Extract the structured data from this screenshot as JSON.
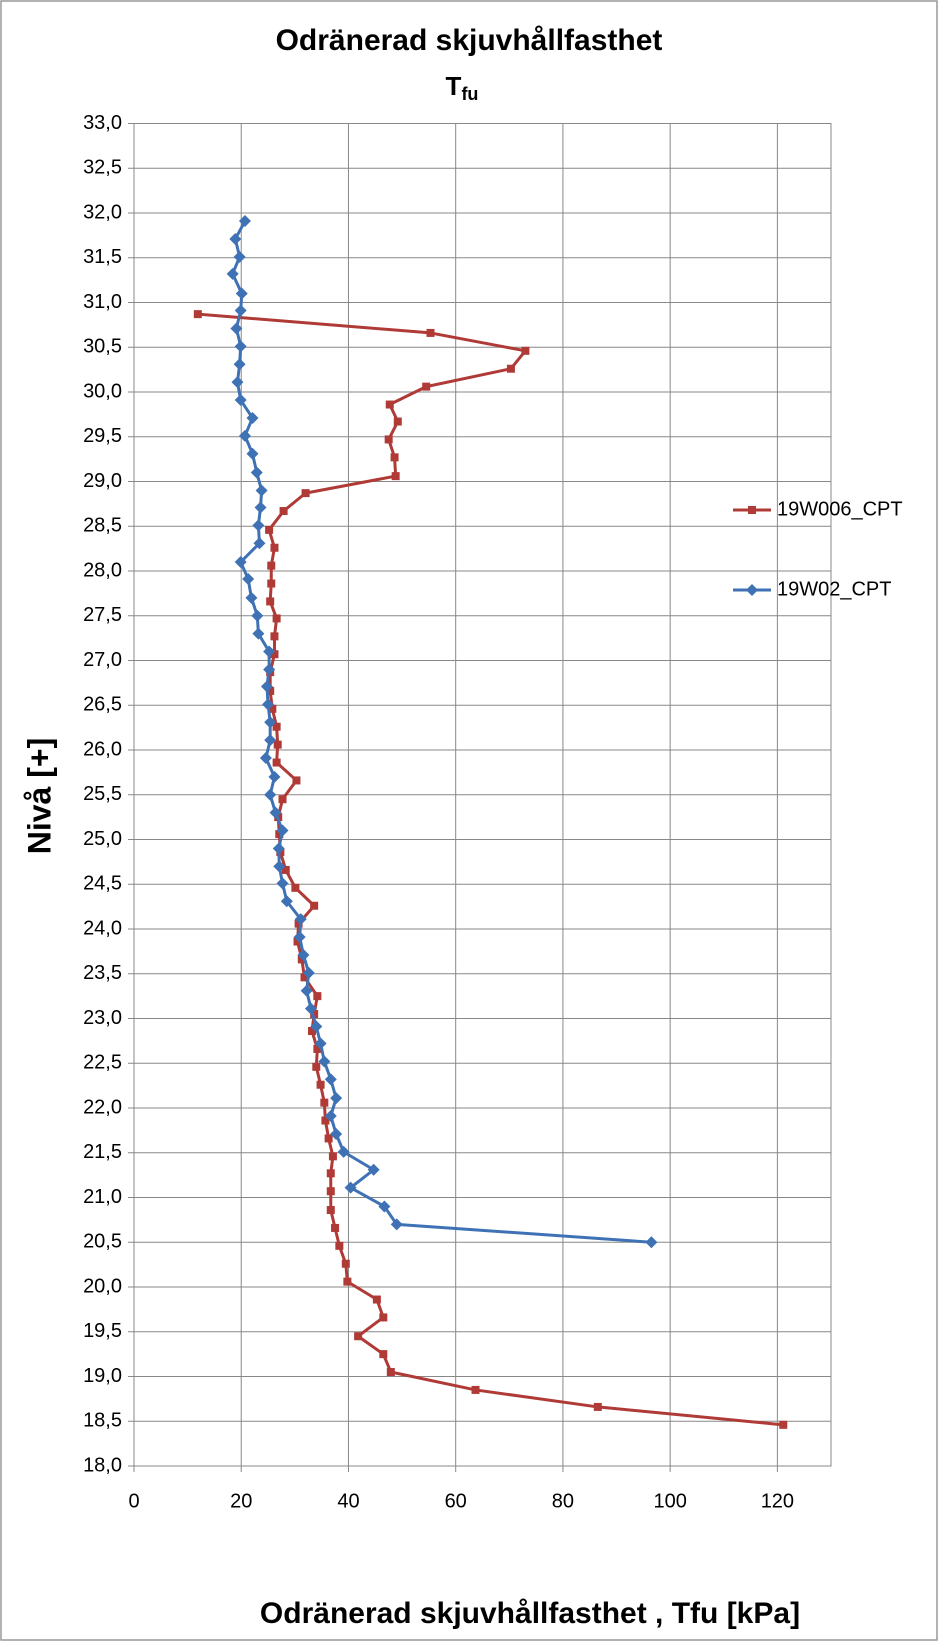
{
  "chart_data": {
    "type": "line",
    "title": "Odränerad skjuvhållfasthet",
    "subtitle": "T",
    "subtitle_subscript": "fu",
    "x_label": "Odränerad skjuvhållfasthet , Tfu [kPa]",
    "y_label": "Nivå [+]",
    "xlim": [
      0,
      130
    ],
    "xticks": [
      0,
      20,
      40,
      60,
      80,
      100,
      120
    ],
    "ylim": [
      18,
      33
    ],
    "yticks": [
      {
        "value": 18,
        "label": "18,0"
      },
      {
        "value": 18.5,
        "label": "18,5"
      },
      {
        "value": 19,
        "label": "19,0"
      },
      {
        "value": 19.5,
        "label": "19,5"
      },
      {
        "value": 20,
        "label": "20,0"
      },
      {
        "value": 20.5,
        "label": "20,5"
      },
      {
        "value": 21,
        "label": "21,0"
      },
      {
        "value": 21.5,
        "label": "21,5"
      },
      {
        "value": 22,
        "label": "22,0"
      },
      {
        "value": 22.5,
        "label": "22,5"
      },
      {
        "value": 23,
        "label": "23,0"
      },
      {
        "value": 23.5,
        "label": "23,5"
      },
      {
        "value": 24,
        "label": "24,0"
      },
      {
        "value": 24.5,
        "label": "24,5"
      },
      {
        "value": 25,
        "label": "25,0"
      },
      {
        "value": 25.5,
        "label": "25,5"
      },
      {
        "value": 26,
        "label": "26,0"
      },
      {
        "value": 26.5,
        "label": "26,5"
      },
      {
        "value": 27,
        "label": "27,0"
      },
      {
        "value": 27.5,
        "label": "27,5"
      },
      {
        "value": 28,
        "label": "28,0"
      },
      {
        "value": 28.5,
        "label": "28,5"
      },
      {
        "value": 29,
        "label": "29,0"
      },
      {
        "value": 29.5,
        "label": "29,5"
      },
      {
        "value": 30,
        "label": "30,0"
      },
      {
        "value": 30.5,
        "label": "30,5"
      },
      {
        "value": 31,
        "label": "31,0"
      },
      {
        "value": 31.5,
        "label": "31,5"
      },
      {
        "value": 32,
        "label": "32,0"
      },
      {
        "value": 32.5,
        "label": "32,5"
      },
      {
        "value": 33,
        "label": "33,0"
      }
    ],
    "grid": true,
    "legend": "right",
    "series": [
      {
        "name": "19W006_CPT",
        "color": "#b03a36",
        "marker": "square",
        "x": [
          11.9,
          55.3,
          73.0,
          70.3,
          54.5,
          47.7,
          49.2,
          47.5,
          48.6,
          48.8,
          32.0,
          27.9,
          25.2,
          26.2,
          25.6,
          25.6,
          25.4,
          26.6,
          26.2,
          26.2,
          25.4,
          25.4,
          25.8,
          26.6,
          26.8,
          26.6,
          30.3,
          27.7,
          26.9,
          27.1,
          27.3,
          28.3,
          30.1,
          33.6,
          30.7,
          30.5,
          31.3,
          31.8,
          34.2,
          33.6,
          33.2,
          34.2,
          34.0,
          34.8,
          35.5,
          35.7,
          36.3,
          37.1,
          36.7,
          36.7,
          36.7,
          37.5,
          38.3,
          39.5,
          39.8,
          45.3,
          46.5,
          41.8,
          46.5,
          47.9,
          63.7,
          86.5,
          121.1
        ],
        "values": [
          30.87,
          30.66,
          30.46,
          30.26,
          30.06,
          29.86,
          29.67,
          29.47,
          29.27,
          29.06,
          28.87,
          28.67,
          28.46,
          28.26,
          28.06,
          27.86,
          27.66,
          27.47,
          27.27,
          27.07,
          26.87,
          26.66,
          26.46,
          26.26,
          26.06,
          25.86,
          25.66,
          25.45,
          25.25,
          25.06,
          24.86,
          24.66,
          24.46,
          24.26,
          24.06,
          23.86,
          23.66,
          23.46,
          23.25,
          23.05,
          22.86,
          22.66,
          22.46,
          22.26,
          22.06,
          21.86,
          21.66,
          21.46,
          21.27,
          21.07,
          20.86,
          20.66,
          20.46,
          20.26,
          20.06,
          19.86,
          19.66,
          19.45,
          19.25,
          19.05,
          18.85,
          18.66,
          18.46
        ]
      },
      {
        "name": "19W02_CPT",
        "color": "#3f72b5",
        "marker": "diamond",
        "x": [
          20.7,
          18.9,
          19.7,
          18.4,
          20.1,
          19.9,
          19.1,
          19.9,
          19.7,
          19.3,
          19.9,
          22.1,
          20.7,
          22.1,
          22.9,
          23.8,
          23.6,
          23.2,
          23.4,
          19.9,
          21.3,
          21.9,
          23.0,
          23.2,
          25.2,
          25.2,
          24.8,
          25.0,
          25.4,
          25.4,
          24.6,
          26.2,
          25.4,
          26.4,
          27.7,
          27.0,
          27.1,
          27.7,
          28.5,
          31.1,
          30.9,
          31.6,
          32.6,
          32.2,
          33.0,
          34.0,
          34.8,
          35.5,
          36.7,
          37.7,
          36.7,
          37.7,
          39.1,
          44.7,
          40.4,
          46.7,
          49.0,
          96.5
        ],
        "values": [
          31.91,
          31.71,
          31.51,
          31.32,
          31.1,
          30.91,
          30.71,
          30.51,
          30.31,
          30.11,
          29.91,
          29.71,
          29.51,
          29.31,
          29.1,
          28.9,
          28.71,
          28.51,
          28.31,
          28.1,
          27.91,
          27.7,
          27.5,
          27.3,
          27.1,
          26.9,
          26.71,
          26.51,
          26.31,
          26.11,
          25.91,
          25.7,
          25.5,
          25.3,
          25.1,
          24.9,
          24.7,
          24.51,
          24.31,
          24.11,
          23.91,
          23.71,
          23.51,
          23.31,
          23.11,
          22.91,
          22.72,
          22.52,
          22.32,
          22.11,
          21.91,
          21.71,
          21.51,
          21.31,
          21.11,
          20.9,
          20.7,
          20.5
        ]
      }
    ]
  }
}
